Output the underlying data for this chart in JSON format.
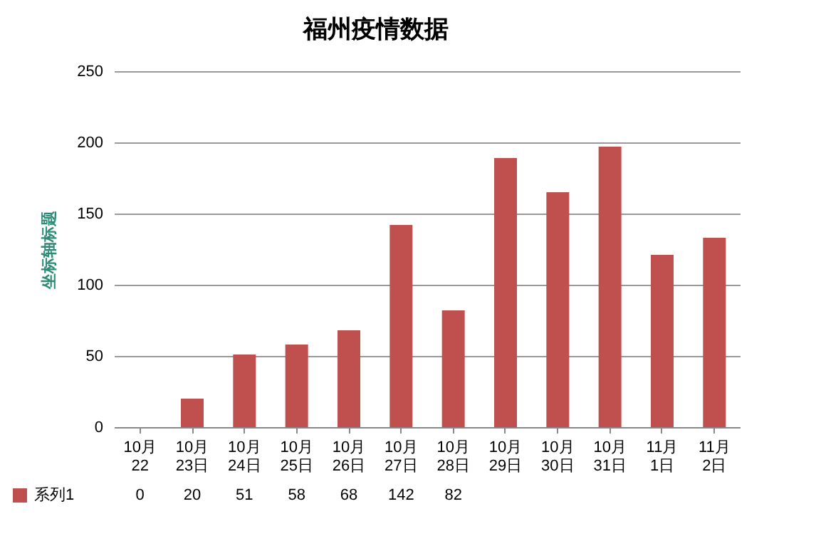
{
  "chart_data": {
    "type": "bar",
    "title": "福州疫情数据",
    "ylabel": "坐标轴标题",
    "categories": [
      "10月22",
      "10月23日",
      "10月24日",
      "10月25日",
      "10月26日",
      "10月27日",
      "10月28日",
      "10月29日",
      "10月30日",
      "10月31日",
      "11月1日",
      "11月2日"
    ],
    "series": [
      {
        "name": "系列1",
        "color": "#c0504d",
        "values": [
          0,
          20,
          51,
          58,
          68,
          142,
          82,
          189,
          165,
          197,
          121,
          133
        ],
        "value_labels": [
          "0",
          "20",
          "51",
          "58",
          "68",
          "142",
          "82",
          null,
          null,
          null,
          null,
          null
        ]
      }
    ],
    "ylim": [
      0,
      250
    ],
    "yticks": [
      0,
      50,
      100,
      150,
      200,
      250
    ],
    "grid": "y",
    "legend": "bottom left"
  }
}
